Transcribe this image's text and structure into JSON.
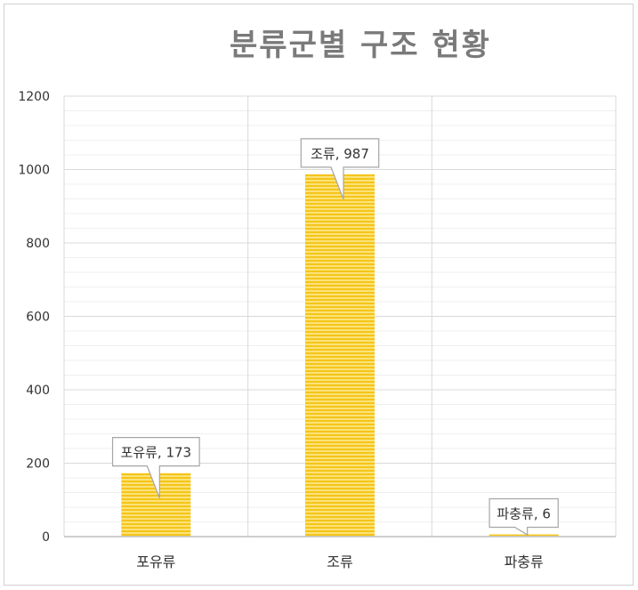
{
  "chart_data": {
    "type": "bar",
    "title": "분류군별 구조 현황",
    "xlabel": "",
    "ylabel": "",
    "categories": [
      "포유류",
      "조류",
      "파충류"
    ],
    "values": [
      173,
      987,
      6
    ],
    "data_labels": [
      "포유류, 173",
      "조류, 987",
      "파충류, 6"
    ],
    "ylim": [
      0,
      1200
    ],
    "yticks": [
      0,
      200,
      400,
      600,
      800,
      1000,
      1200
    ],
    "ytick_labels": [
      "0",
      "200",
      "400",
      "600",
      "800",
      "1000",
      "1200"
    ],
    "grid": true,
    "legend": "none",
    "colors": {
      "bar_stripe_a": "#f5c518",
      "bar_stripe_b": "#fbe27a",
      "title": "#7a7a7a",
      "text": "#333333",
      "grid_major": "#d9d9d9",
      "grid_minor": "#efefef",
      "callout_border": "#a6a6a6"
    }
  }
}
